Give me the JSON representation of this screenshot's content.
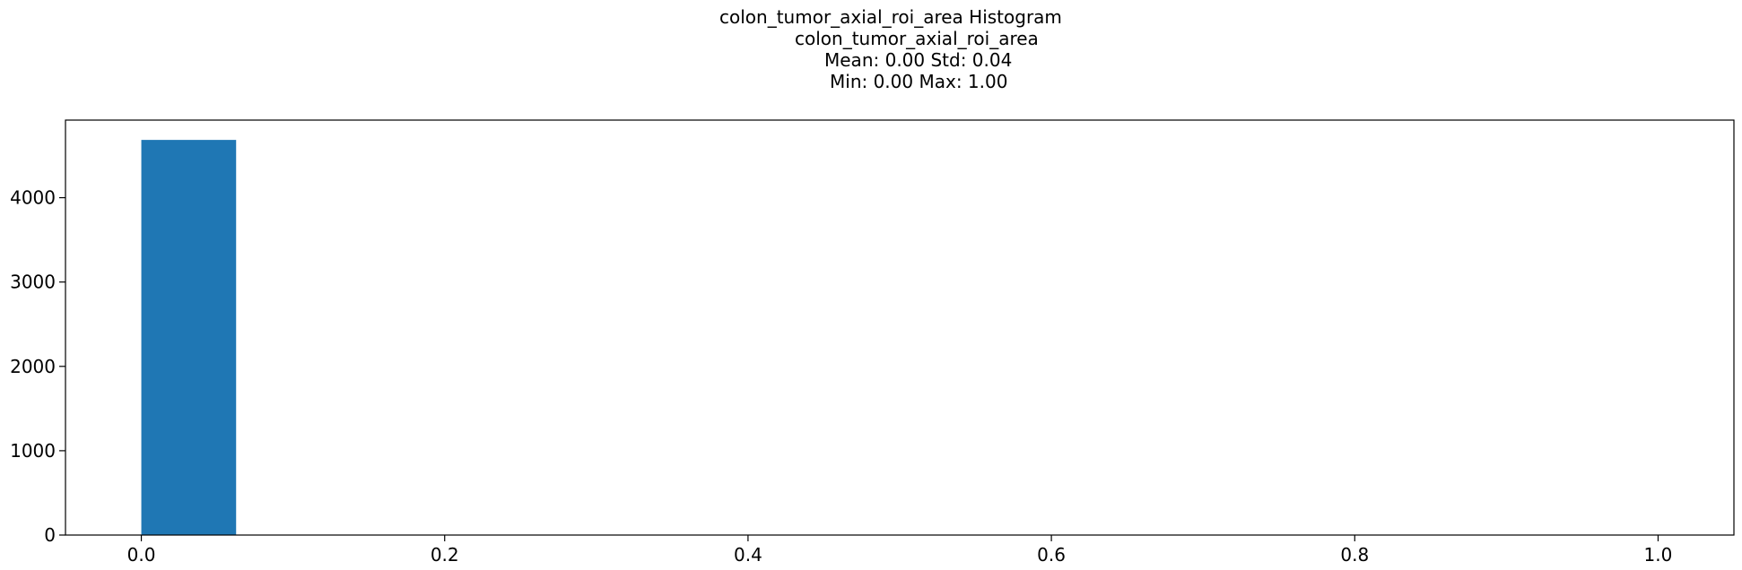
{
  "chart_data": {
    "type": "bar",
    "title": "colon_tumor_axial_roi_area Histogram",
    "subtitle_lines": [
      "colon_tumor_axial_roi_area",
      "Mean: 0.00 Std: 0.04",
      "Min: 0.00 Max: 1.00"
    ],
    "xlabel": "",
    "ylabel": "",
    "xlim": [
      -0.05,
      1.05
    ],
    "ylim": [
      0,
      4920
    ],
    "x_ticks": [
      0.0,
      0.2,
      0.4,
      0.6,
      0.8,
      1.0
    ],
    "x_tick_labels": [
      "0.0",
      "0.2",
      "0.4",
      "0.6",
      "0.8",
      "1.0"
    ],
    "y_ticks": [
      0,
      1000,
      2000,
      3000,
      4000
    ],
    "y_tick_labels": [
      "0",
      "1000",
      "2000",
      "3000",
      "4000"
    ],
    "bins": [
      {
        "x0": 0.0,
        "x1": 0.0625,
        "count": 4685
      }
    ],
    "bar_color": "#1f77b4",
    "grid": false,
    "legend": "none"
  }
}
